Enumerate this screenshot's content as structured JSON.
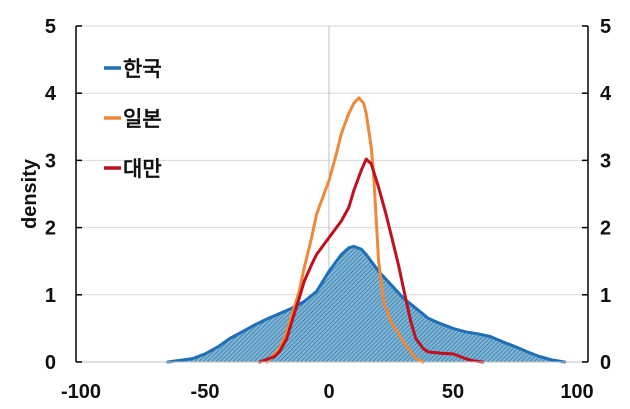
{
  "chart_data": {
    "type": "area",
    "title": "",
    "xlabel": "",
    "ylabel": "density",
    "xlim": [
      -100,
      100
    ],
    "ylim": [
      0,
      5
    ],
    "x_ticks": [
      -100,
      -50,
      0,
      50,
      100
    ],
    "y_ticks": [
      0,
      1,
      2,
      3,
      4,
      5
    ],
    "y2_ticks": [
      0,
      1,
      2,
      3,
      4,
      5
    ],
    "grid": true,
    "legend_position": "upper-left",
    "series": [
      {
        "name": "한국",
        "color": "#1f6fb8",
        "fill": "hatched",
        "x": [
          -65,
          -55,
          -50,
          -45,
          -40,
          -35,
          -30,
          -25,
          -20,
          -15,
          -10,
          -5,
          0,
          5,
          8,
          10,
          13,
          15,
          20,
          25,
          30,
          35,
          40,
          45,
          50,
          55,
          60,
          65,
          70,
          75,
          80,
          85,
          90,
          95
        ],
        "values": [
          0,
          0.05,
          0.12,
          0.22,
          0.35,
          0.45,
          0.55,
          0.64,
          0.72,
          0.8,
          0.9,
          1.05,
          1.35,
          1.6,
          1.7,
          1.72,
          1.68,
          1.6,
          1.35,
          1.15,
          0.95,
          0.8,
          0.65,
          0.57,
          0.5,
          0.45,
          0.42,
          0.38,
          0.3,
          0.23,
          0.15,
          0.08,
          0.03,
          0
        ]
      },
      {
        "name": "일본",
        "color": "#f0883a",
        "fill": "none",
        "x": [
          -25,
          -20,
          -17,
          -15,
          -12,
          -10,
          -7,
          -5,
          -2,
          0,
          3,
          5,
          8,
          10,
          12,
          14,
          15,
          17,
          18,
          20,
          22,
          25,
          28,
          30,
          33,
          35,
          38
        ],
        "values": [
          0,
          0.2,
          0.45,
          0.7,
          1.05,
          1.4,
          1.85,
          2.2,
          2.5,
          2.7,
          3.1,
          3.4,
          3.7,
          3.85,
          3.93,
          3.85,
          3.7,
          3.2,
          2.8,
          1.5,
          0.9,
          0.6,
          0.42,
          0.3,
          0.15,
          0.05,
          0
        ]
      },
      {
        "name": "대만",
        "color": "#c0101e",
        "fill": "none",
        "x": [
          -28,
          -22,
          -20,
          -17,
          -15,
          -12,
          -10,
          -7,
          -5,
          -2,
          0,
          3,
          5,
          8,
          10,
          13,
          15,
          17,
          20,
          23,
          25,
          28,
          30,
          33,
          35,
          38,
          40,
          45,
          50,
          53,
          55,
          58,
          62
        ],
        "values": [
          0,
          0.08,
          0.15,
          0.35,
          0.6,
          0.95,
          1.2,
          1.45,
          1.6,
          1.75,
          1.85,
          2.0,
          2.1,
          2.3,
          2.55,
          2.85,
          3.02,
          2.95,
          2.6,
          2.2,
          1.9,
          1.45,
          1.1,
          0.6,
          0.35,
          0.2,
          0.15,
          0.13,
          0.12,
          0.08,
          0.05,
          0.02,
          0
        ]
      }
    ]
  },
  "legend": {
    "items": [
      {
        "label": "한국",
        "color": "#1f6fb8"
      },
      {
        "label": "일본",
        "color": "#f0883a"
      },
      {
        "label": "대만",
        "color": "#c0101e"
      }
    ]
  },
  "axes": {
    "ylabel": "density",
    "x_tick_labels": [
      "-100",
      "-50",
      "0",
      "50",
      "100"
    ],
    "y_tick_labels": [
      "0",
      "1",
      "2",
      "3",
      "4",
      "5"
    ]
  }
}
